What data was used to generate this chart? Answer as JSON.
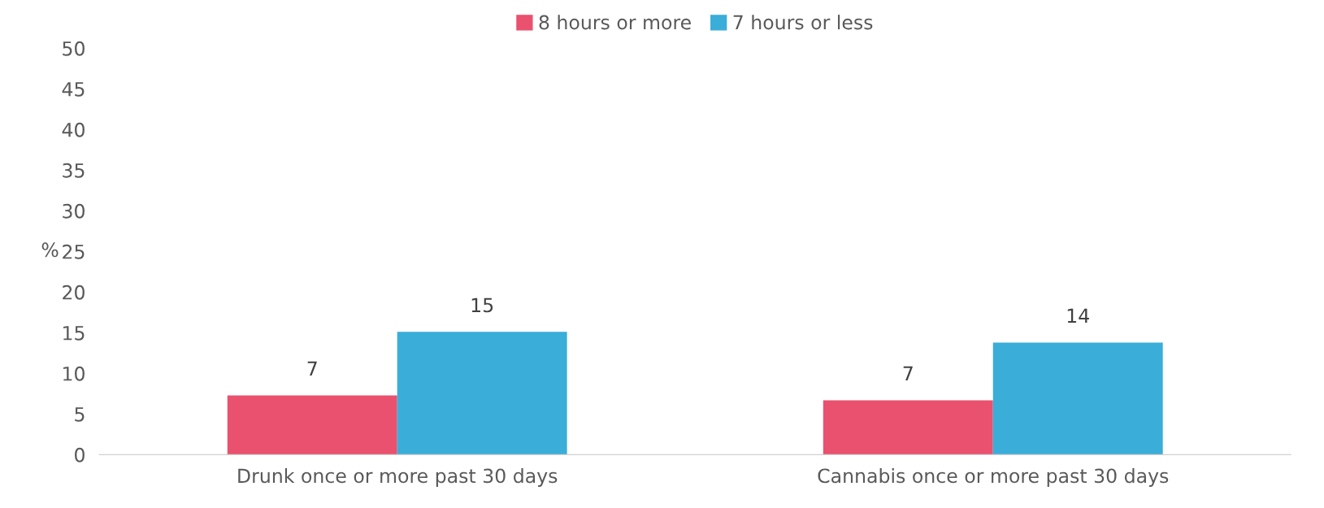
{
  "chart_data": {
    "type": "bar",
    "categories": [
      "Drunk once or more past 30 days",
      "Cannabis once or more past 30 days"
    ],
    "ylabel": "%",
    "ylim": [
      0,
      50
    ],
    "yticks": [
      0,
      5,
      10,
      15,
      20,
      25,
      30,
      35,
      40,
      45,
      50
    ],
    "grid": false,
    "legend": "top",
    "series": [
      {
        "name": "8 hours or more",
        "color": "#e9516e",
        "values": [
          7.3,
          6.7
        ],
        "value_labels": [
          "7",
          "7"
        ]
      },
      {
        "name": "7 hours or less",
        "color": "#3aadd9",
        "values": [
          15.1,
          13.8
        ],
        "value_labels": [
          "15",
          "14"
        ]
      }
    ]
  }
}
